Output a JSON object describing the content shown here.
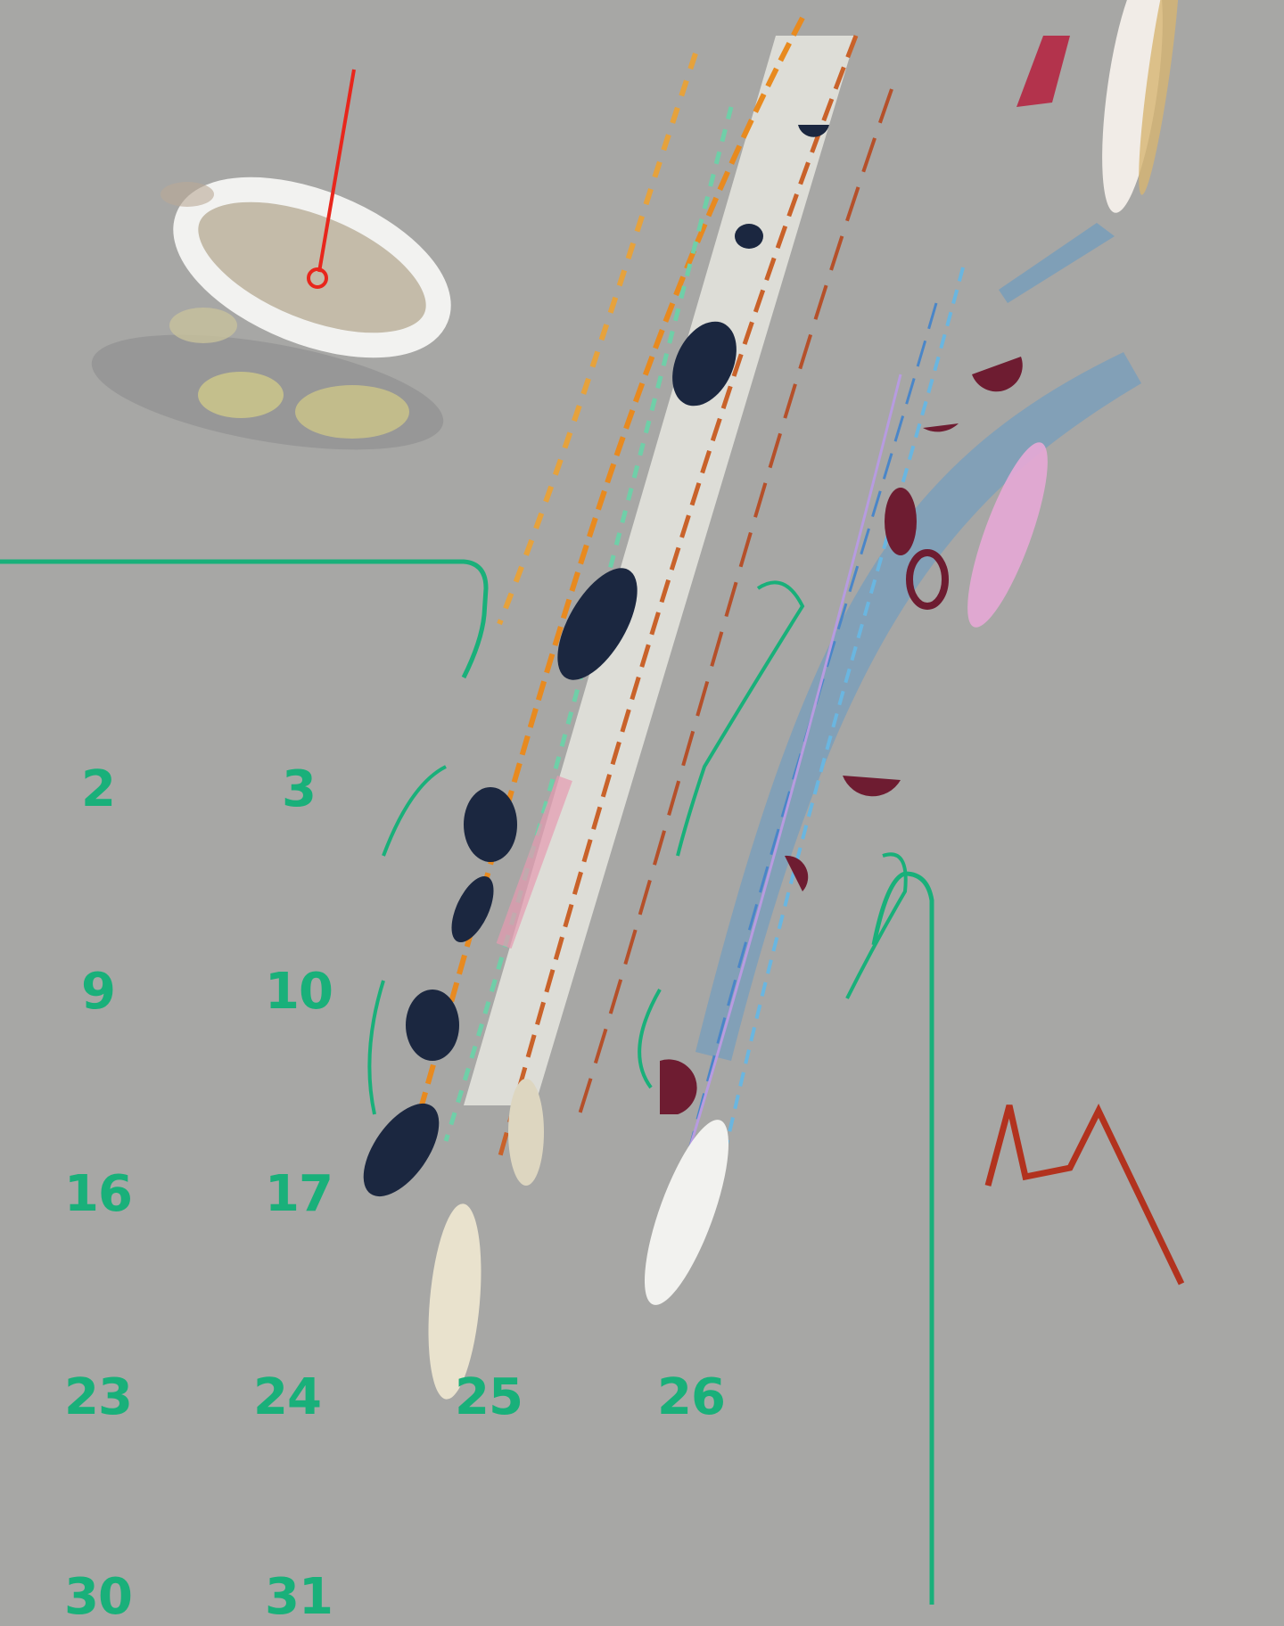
{
  "artwork": {
    "background_color": "#a7a7a5",
    "accent_green": "#19b07a",
    "calendar_numbers": [
      "2",
      "3",
      "9",
      "10",
      "16",
      "17",
      "23",
      "24",
      "25",
      "26",
      "30",
      "31"
    ]
  }
}
